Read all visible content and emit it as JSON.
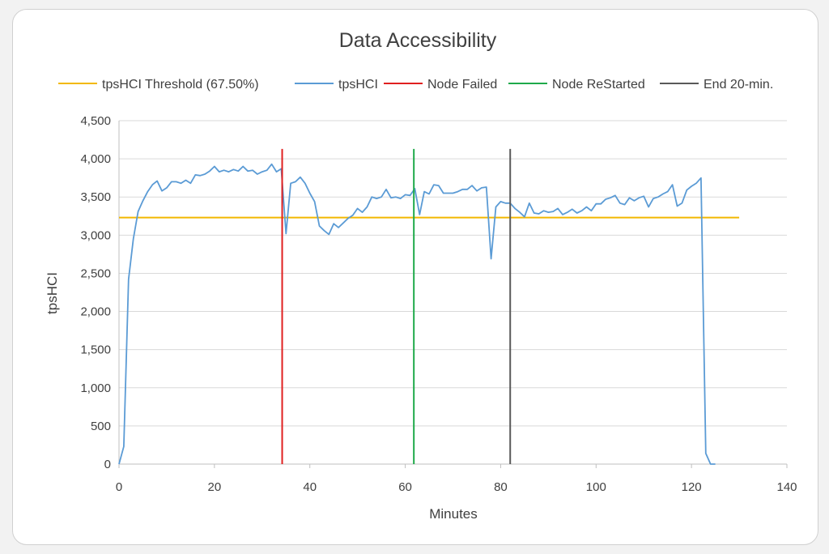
{
  "chart_data": {
    "type": "line",
    "title": "Data Accessibility",
    "xlabel": "Minutes",
    "ylabel": "tpsHCI",
    "xlim": [
      0,
      140
    ],
    "ylim": [
      0,
      4500
    ],
    "x_ticks": [
      0,
      20,
      40,
      60,
      80,
      100,
      120,
      140
    ],
    "y_ticks": [
      0,
      500,
      1000,
      1500,
      2000,
      2500,
      3000,
      3500,
      4000,
      4500
    ],
    "x_tick_labels": [
      "0",
      "20",
      "40",
      "60",
      "80",
      "100",
      "120",
      "140"
    ],
    "y_tick_labels": [
      "0",
      "500",
      "1,000",
      "1,500",
      "2,000",
      "2,500",
      "3,000",
      "3,500",
      "4,000",
      "4,500"
    ],
    "grid": "horizontal",
    "legend_position": "top",
    "legend": [
      "tpsHCI Threshold (67.50%)",
      "tpsHCI",
      "Node Failed",
      "Node ReStarted",
      "End 20-min."
    ],
    "series": [
      {
        "name": "tpsHCI Threshold (67.50%)",
        "color": "#f2b800",
        "kind": "hline",
        "y": 3230,
        "x": [
          0,
          130
        ]
      },
      {
        "name": "tpsHCI",
        "color": "#5b9bd5",
        "kind": "line",
        "x": [
          0,
          1,
          2,
          3,
          4,
          5,
          6,
          7,
          8,
          9,
          10,
          11,
          12,
          13,
          14,
          15,
          16,
          17,
          18,
          19,
          20,
          21,
          22,
          23,
          24,
          25,
          26,
          27,
          28,
          29,
          30,
          31,
          32,
          33,
          34,
          35,
          36,
          37,
          38,
          39,
          40,
          41,
          42,
          43,
          44,
          45,
          46,
          47,
          48,
          49,
          50,
          51,
          52,
          53,
          54,
          55,
          56,
          57,
          58,
          59,
          60,
          61,
          62,
          63,
          64,
          65,
          66,
          67,
          68,
          69,
          70,
          71,
          72,
          73,
          74,
          75,
          76,
          77,
          78,
          79,
          80,
          81,
          82,
          83,
          84,
          85,
          86,
          87,
          88,
          89,
          90,
          91,
          92,
          93,
          94,
          95,
          96,
          97,
          98,
          99,
          100,
          101,
          102,
          103,
          104,
          105,
          106,
          107,
          108,
          109,
          110,
          111,
          112,
          113,
          114,
          115,
          116,
          117,
          118,
          119,
          120,
          121,
          122,
          123,
          124,
          125
        ],
        "y": [
          0,
          230,
          2420,
          2950,
          3310,
          3450,
          3570,
          3660,
          3710,
          3580,
          3620,
          3700,
          3700,
          3680,
          3720,
          3680,
          3790,
          3780,
          3800,
          3840,
          3900,
          3830,
          3850,
          3830,
          3860,
          3840,
          3900,
          3840,
          3850,
          3800,
          3830,
          3850,
          3930,
          3830,
          3870,
          3020,
          3680,
          3700,
          3760,
          3680,
          3550,
          3440,
          3120,
          3060,
          3010,
          3150,
          3100,
          3160,
          3220,
          3260,
          3350,
          3300,
          3370,
          3500,
          3480,
          3500,
          3600,
          3490,
          3500,
          3480,
          3530,
          3520,
          3610,
          3270,
          3570,
          3540,
          3660,
          3650,
          3550,
          3550,
          3550,
          3570,
          3600,
          3600,
          3650,
          3580,
          3620,
          3630,
          2690,
          3370,
          3440,
          3420,
          3420,
          3350,
          3300,
          3240,
          3420,
          3290,
          3280,
          3320,
          3300,
          3310,
          3350,
          3270,
          3300,
          3340,
          3290,
          3320,
          3370,
          3320,
          3410,
          3410,
          3470,
          3490,
          3520,
          3420,
          3400,
          3490,
          3450,
          3490,
          3510,
          3370,
          3480,
          3500,
          3540,
          3570,
          3660,
          3380,
          3420,
          3590,
          3640,
          3680,
          3750,
          140,
          0,
          0
        ]
      },
      {
        "name": "Node Failed",
        "color": "#e02020",
        "kind": "vline",
        "x": 34.2,
        "y": [
          0,
          4130
        ]
      },
      {
        "name": "Node ReStarted",
        "color": "#1faa4a",
        "kind": "vline",
        "x": 61.8,
        "y": [
          0,
          4130
        ]
      },
      {
        "name": "End 20-min.",
        "color": "#595959",
        "kind": "vline",
        "x": 82,
        "y": [
          0,
          4130
        ]
      }
    ]
  }
}
